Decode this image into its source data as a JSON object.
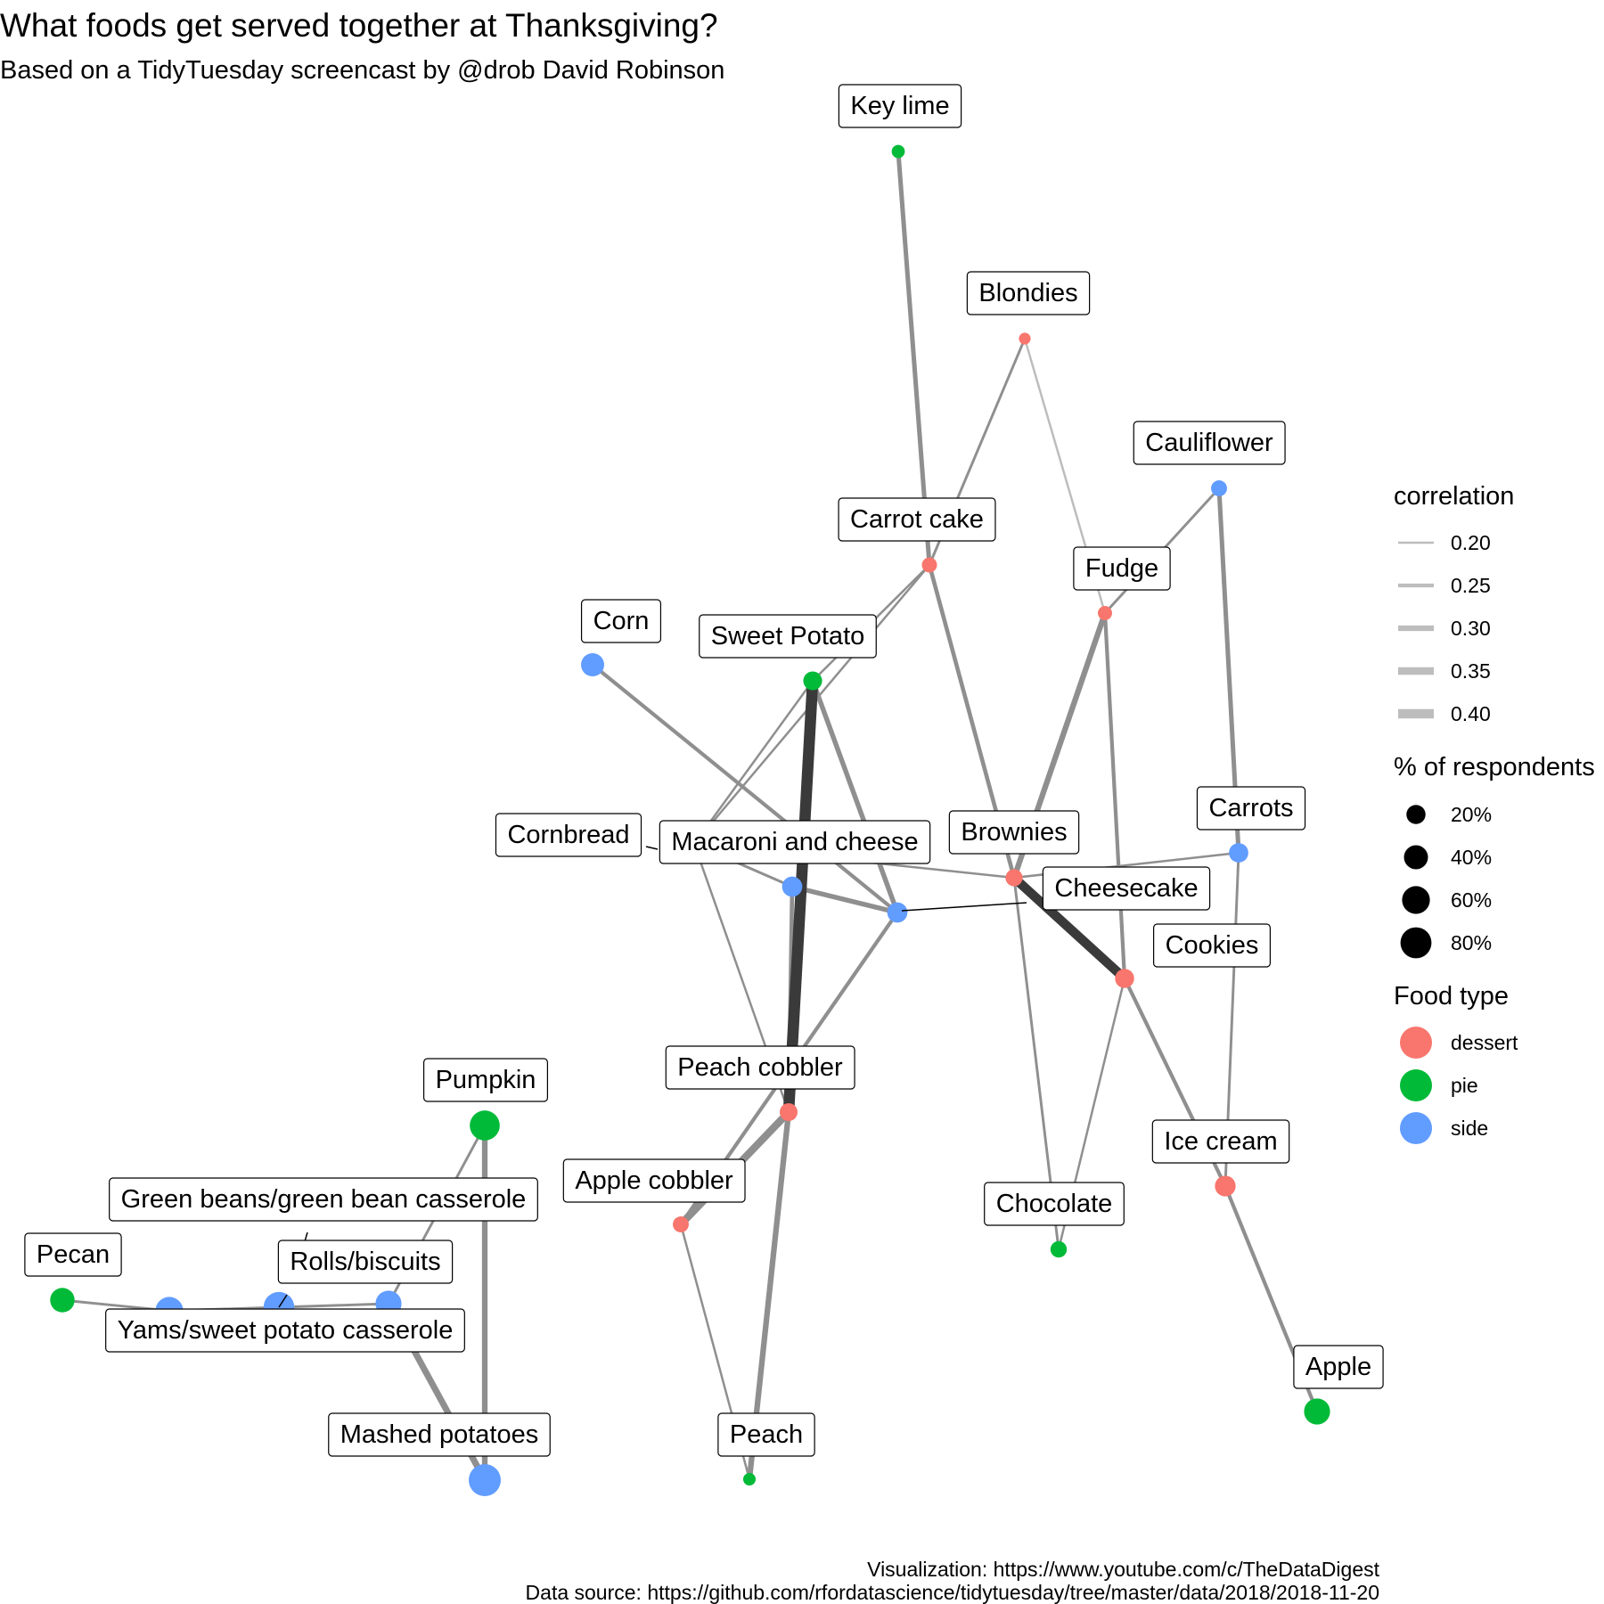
{
  "chart_data": {
    "type": "network",
    "title": "What foods get served together at Thanksgiving?",
    "subtitle": "Based on a TidyTuesday screencast by @drob David Robinson",
    "caption_lines": [
      "Visualization: https://www.youtube.com/c/TheDataDigest",
      "Data source: https://github.com/rfordatascience/tidytuesday/tree/master/data/2018/2018-11-20"
    ],
    "colors": {
      "dessert": "#F8766D",
      "pie": "#00BA38",
      "side": "#619CFF",
      "edge_light": "#bdbdbd",
      "edge_mid": "#8f8f8f",
      "edge_dark": "#3a3a3a"
    },
    "nodes": [
      {
        "id": "Key lime",
        "label": "Key lime",
        "type": "pie",
        "pct": 5
      },
      {
        "id": "Blondies",
        "label": "Blondies",
        "type": "dessert",
        "pct": 3
      },
      {
        "id": "Cauliflower",
        "label": "Cauliflower",
        "type": "side",
        "pct": 11
      },
      {
        "id": "Carrot cake",
        "label": "Carrot cake",
        "type": "dessert",
        "pct": 9
      },
      {
        "id": "Fudge",
        "label": "Fudge",
        "type": "dessert",
        "pct": 7
      },
      {
        "id": "Corn",
        "label": "Corn",
        "type": "side",
        "pct": 36
      },
      {
        "id": "Sweet Potato",
        "label": "Sweet Potato",
        "type": "pie",
        "pct": 19
      },
      {
        "id": "Cornbread",
        "label": "Cornbread",
        "type": "side",
        "pct": 24
      },
      {
        "id": "Macaroni and cheese",
        "label": "Macaroni and cheese",
        "type": "side",
        "pct": 24
      },
      {
        "id": "Brownies",
        "label": "Brownies",
        "type": "dessert",
        "pct": 14
      },
      {
        "id": "Cheesecake",
        "label": "Cheesecake",
        "type": "dessert",
        "pct": 16
      },
      {
        "id": "Carrots",
        "label": "Carrots",
        "type": "side",
        "pct": 21
      },
      {
        "id": "Cookies",
        "label": "Cookies",
        "type": "dessert",
        "pct": 20
      },
      {
        "id": "Peach cobbler",
        "label": "Peach cobbler",
        "type": "dessert",
        "pct": 16
      },
      {
        "id": "Apple cobbler",
        "label": "Apple cobbler",
        "type": "dessert",
        "pct": 11
      },
      {
        "id": "Ice cream",
        "label": "Ice cream",
        "type": "dessert",
        "pct": 26
      },
      {
        "id": "Chocolate",
        "label": "Chocolate",
        "type": "pie",
        "pct": 12
      },
      {
        "id": "Apple",
        "label": "Apple",
        "type": "pie",
        "pct": 50
      },
      {
        "id": "Pumpkin",
        "label": "Pumpkin",
        "type": "pie",
        "pct": 73
      },
      {
        "id": "Green beans/green bean casserole",
        "label": "Green beans/green bean casserole",
        "type": "side",
        "pct": 60
      },
      {
        "id": "Pecan",
        "label": "Pecan",
        "type": "pie",
        "pct": 42
      },
      {
        "id": "Rolls/biscuits",
        "label": "Rolls/biscuits",
        "type": "side",
        "pct": 78
      },
      {
        "id": "Yams/sweet potato casserole",
        "label": "Yams/sweet potato casserole",
        "type": "side",
        "pct": 50
      },
      {
        "id": "Mashed potatoes",
        "label": "Mashed potatoes",
        "type": "side",
        "pct": 87
      },
      {
        "id": "Peach",
        "label": "Peach",
        "type": "pie",
        "pct": 4
      }
    ],
    "edges": [
      {
        "from": "Key lime",
        "to": "Carrot cake",
        "correlation": 0.27
      },
      {
        "from": "Blondies",
        "to": "Carrot cake",
        "correlation": 0.22
      },
      {
        "from": "Blondies",
        "to": "Fudge",
        "correlation": 0.18
      },
      {
        "from": "Cauliflower",
        "to": "Fudge",
        "correlation": 0.22
      },
      {
        "from": "Cauliflower",
        "to": "Carrots",
        "correlation": 0.27
      },
      {
        "from": "Carrot cake",
        "to": "Sweet Potato",
        "correlation": 0.2
      },
      {
        "from": "Carrot cake",
        "to": "Cheesecake",
        "correlation": 0.2
      },
      {
        "from": "Carrot cake",
        "to": "Brownies",
        "correlation": 0.26
      },
      {
        "from": "Fudge",
        "to": "Brownies",
        "correlation": 0.3
      },
      {
        "from": "Fudge",
        "to": "Cookies",
        "correlation": 0.25
      },
      {
        "from": "Corn",
        "to": "Macaroni and cheese",
        "correlation": 0.25
      },
      {
        "from": "Sweet Potato",
        "to": "Macaroni and cheese",
        "correlation": 0.28
      },
      {
        "from": "Sweet Potato",
        "to": "Peach cobbler",
        "correlation": 0.45
      },
      {
        "from": "Sweet Potato",
        "to": "Cheesecake",
        "correlation": 0.2
      },
      {
        "from": "Cornbread",
        "to": "Macaroni and cheese",
        "correlation": 0.28
      },
      {
        "from": "Cornbread",
        "to": "Peach cobbler",
        "correlation": 0.26
      },
      {
        "from": "Macaroni and cheese",
        "to": "Apple cobbler",
        "correlation": 0.25
      },
      {
        "from": "Cornbread",
        "to": "Cheesecake",
        "correlation": 0.22
      },
      {
        "from": "Cheesecake",
        "to": "Brownies",
        "correlation": 0.2
      },
      {
        "from": "Cheesecake",
        "to": "Peach cobbler",
        "correlation": 0.2
      },
      {
        "from": "Brownies",
        "to": "Cookies",
        "correlation": 0.4
      },
      {
        "from": "Brownies",
        "to": "Chocolate",
        "correlation": 0.22
      },
      {
        "from": "Brownies",
        "to": "Carrots",
        "correlation": 0.2
      },
      {
        "from": "Cookies",
        "to": "Ice cream",
        "correlation": 0.25
      },
      {
        "from": "Cookies",
        "to": "Chocolate",
        "correlation": 0.2
      },
      {
        "from": "Carrots",
        "to": "Ice cream",
        "correlation": 0.22
      },
      {
        "from": "Peach cobbler",
        "to": "Apple cobbler",
        "correlation": 0.35
      },
      {
        "from": "Peach cobbler",
        "to": "Peach",
        "correlation": 0.3
      },
      {
        "from": "Apple cobbler",
        "to": "Peach",
        "correlation": 0.2
      },
      {
        "from": "Ice cream",
        "to": "Apple",
        "correlation": 0.25
      },
      {
        "from": "Pumpkin",
        "to": "Mashed potatoes",
        "correlation": 0.3
      },
      {
        "from": "Pumpkin",
        "to": "Yams/sweet potato casserole",
        "correlation": 0.22
      },
      {
        "from": "Pecan",
        "to": "Green beans/green bean casserole",
        "correlation": 0.22
      },
      {
        "from": "Green beans/green bean casserole",
        "to": "Rolls/biscuits",
        "correlation": 0.22
      },
      {
        "from": "Rolls/biscuits",
        "to": "Yams/sweet potato casserole",
        "correlation": 0.22
      },
      {
        "from": "Yams/sweet potato casserole",
        "to": "Mashed potatoes",
        "correlation": 0.32
      }
    ],
    "legend": {
      "correlation": {
        "title": "correlation",
        "entries": [
          "0.20",
          "0.25",
          "0.30",
          "0.35",
          "0.40"
        ],
        "values": [
          0.2,
          0.25,
          0.3,
          0.35,
          0.4
        ]
      },
      "respondents": {
        "title": "% of respondents",
        "entries": [
          "20%",
          "40%",
          "60%",
          "80%"
        ],
        "values": [
          20,
          40,
          60,
          80
        ]
      },
      "food_type": {
        "title": "Food type",
        "entries": [
          "dessert",
          "pie",
          "side"
        ]
      }
    }
  }
}
